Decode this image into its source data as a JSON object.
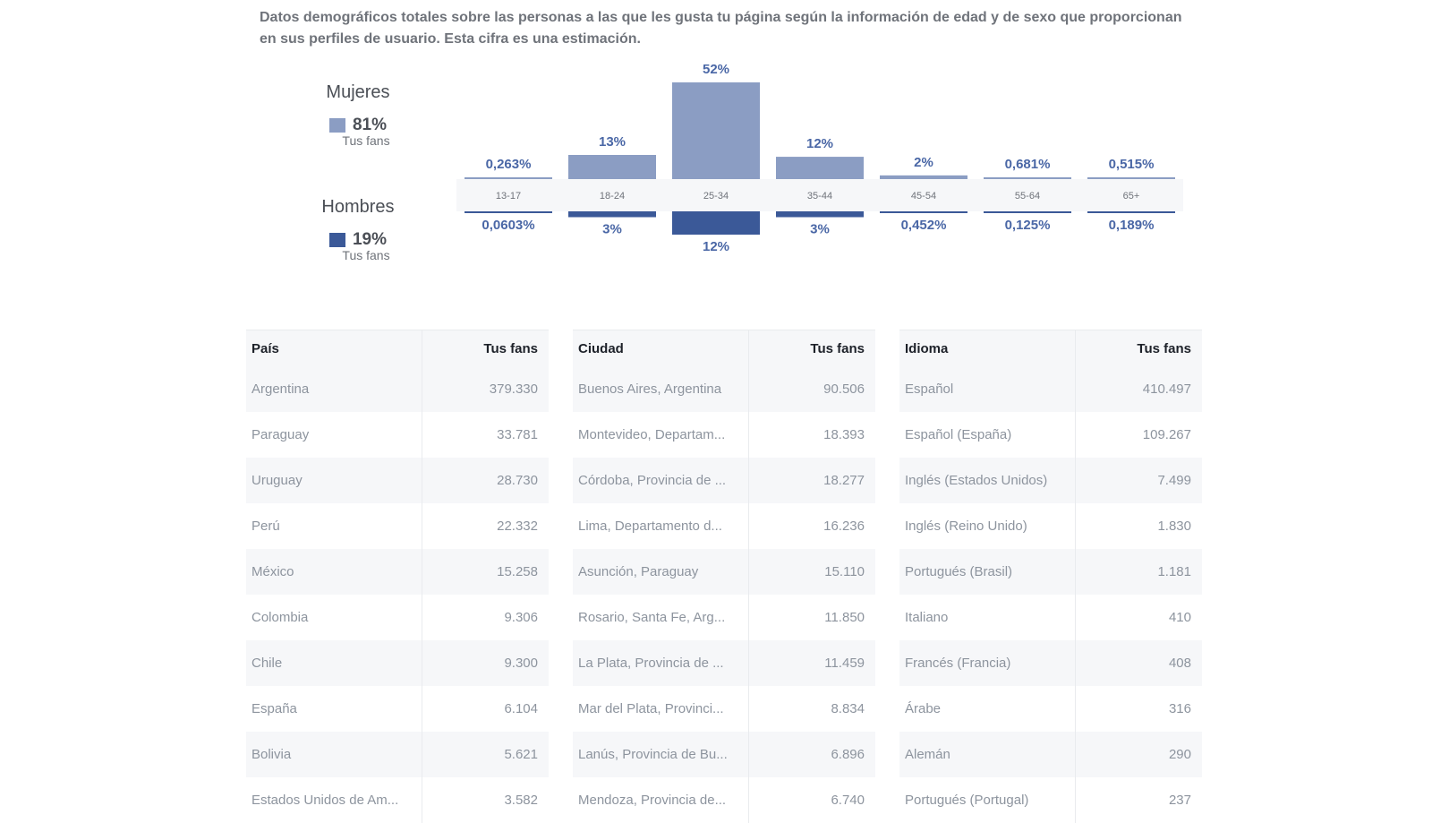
{
  "description": "Datos demográficos totales sobre las personas a las que les gusta tu página según la información de edad y de sexo que proporcionan en sus perfiles de usuario. Esta cifra es una estimación.",
  "legend": {
    "women": {
      "title": "Mujeres",
      "pct": "81%",
      "sub": "Tus fans",
      "color": "#8b9dc3"
    },
    "men": {
      "title": "Hombres",
      "pct": "19%",
      "sub": "Tus fans",
      "color": "#3b5998"
    }
  },
  "chart_data": {
    "type": "bar",
    "categories": [
      "13-17",
      "18-24",
      "25-34",
      "35-44",
      "45-54",
      "55-64",
      "65+"
    ],
    "series": [
      {
        "name": "Mujeres",
        "values": [
          0.263,
          13,
          52,
          12,
          2,
          0.681,
          0.515
        ],
        "labels": [
          "0,263%",
          "13%",
          "52%",
          "12%",
          "2%",
          "0,681%",
          "0,515%"
        ],
        "color": "#8b9dc3"
      },
      {
        "name": "Hombres",
        "values": [
          0.0603,
          3,
          12,
          3,
          0.452,
          0.125,
          0.189
        ],
        "labels": [
          "0,0603%",
          "3%",
          "12%",
          "3%",
          "0,452%",
          "0,125%",
          "0,189%"
        ],
        "color": "#3b5998"
      }
    ]
  },
  "tables": [
    {
      "name": "country",
      "headers": [
        "País",
        "Tus fans"
      ],
      "rows": [
        [
          "Argentina",
          "379.330"
        ],
        [
          "Paraguay",
          "33.781"
        ],
        [
          "Uruguay",
          "28.730"
        ],
        [
          "Perú",
          "22.332"
        ],
        [
          "México",
          "15.258"
        ],
        [
          "Colombia",
          "9.306"
        ],
        [
          "Chile",
          "9.300"
        ],
        [
          "España",
          "6.104"
        ],
        [
          "Bolivia",
          "5.621"
        ],
        [
          "Estados Unidos de Am...",
          "3.582"
        ]
      ]
    },
    {
      "name": "city",
      "headers": [
        "Ciudad",
        "Tus fans"
      ],
      "rows": [
        [
          "Buenos Aires, Argentina",
          "90.506"
        ],
        [
          "Montevideo, Departam...",
          "18.393"
        ],
        [
          "Córdoba, Provincia de ...",
          "18.277"
        ],
        [
          "Lima, Departamento d...",
          "16.236"
        ],
        [
          "Asunción, Paraguay",
          "15.110"
        ],
        [
          "Rosario, Santa Fe, Arg...",
          "11.850"
        ],
        [
          "La Plata, Provincia de ...",
          "11.459"
        ],
        [
          "Mar del Plata, Provinci...",
          "8.834"
        ],
        [
          "Lanús, Provincia de Bu...",
          "6.896"
        ],
        [
          "Mendoza, Provincia de...",
          "6.740"
        ]
      ]
    },
    {
      "name": "language",
      "headers": [
        "Idioma",
        "Tus fans"
      ],
      "rows": [
        [
          "Español",
          "410.497"
        ],
        [
          "Español (España)",
          "109.267"
        ],
        [
          "Inglés (Estados Unidos)",
          "7.499"
        ],
        [
          "Inglés (Reino Unido)",
          "1.830"
        ],
        [
          "Portugués (Brasil)",
          "1.181"
        ],
        [
          "Italiano",
          "410"
        ],
        [
          "Francés (Francia)",
          "408"
        ],
        [
          "Árabe",
          "316"
        ],
        [
          "Alemán",
          "290"
        ],
        [
          "Portugués (Portugal)",
          "237"
        ]
      ]
    }
  ]
}
